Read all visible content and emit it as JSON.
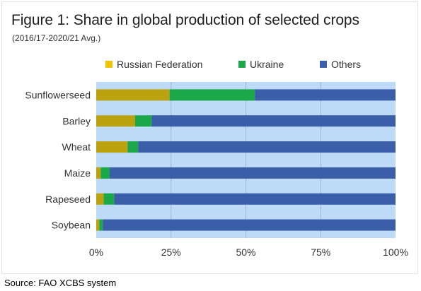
{
  "figure": {
    "title": "Figure 1: Share in global production of selected crops",
    "subtitle": "(2016/17-2020/21 Avg.)"
  },
  "source": "Source: FAO XCBS system",
  "chart_data": {
    "type": "bar",
    "orientation": "horizontal",
    "stacked": true,
    "categories": [
      "Sunflowerseed",
      "Barley",
      "Wheat",
      "Maize",
      "Rapeseed",
      "Soybean"
    ],
    "series": [
      {
        "name": "Russian Federation",
        "color": "#bba310",
        "values": [
          24.5,
          13.0,
          10.5,
          1.5,
          2.5,
          1.0
        ]
      },
      {
        "name": "Ukraine",
        "color": "#1aa84a",
        "values": [
          28.5,
          5.5,
          3.5,
          3.0,
          3.5,
          1.2
        ]
      },
      {
        "name": "Others",
        "color": "#3a5ea8",
        "values": [
          47.0,
          81.5,
          86.0,
          95.5,
          94.0,
          97.8
        ]
      }
    ],
    "xlim": [
      0,
      100
    ],
    "xticks": [
      "0%",
      "25%",
      "50%",
      "75%",
      "100%"
    ],
    "xtick_values": [
      0,
      25,
      50,
      75,
      100
    ],
    "grid": true,
    "legend_position": "top",
    "plot_background": "#bddaf6"
  }
}
